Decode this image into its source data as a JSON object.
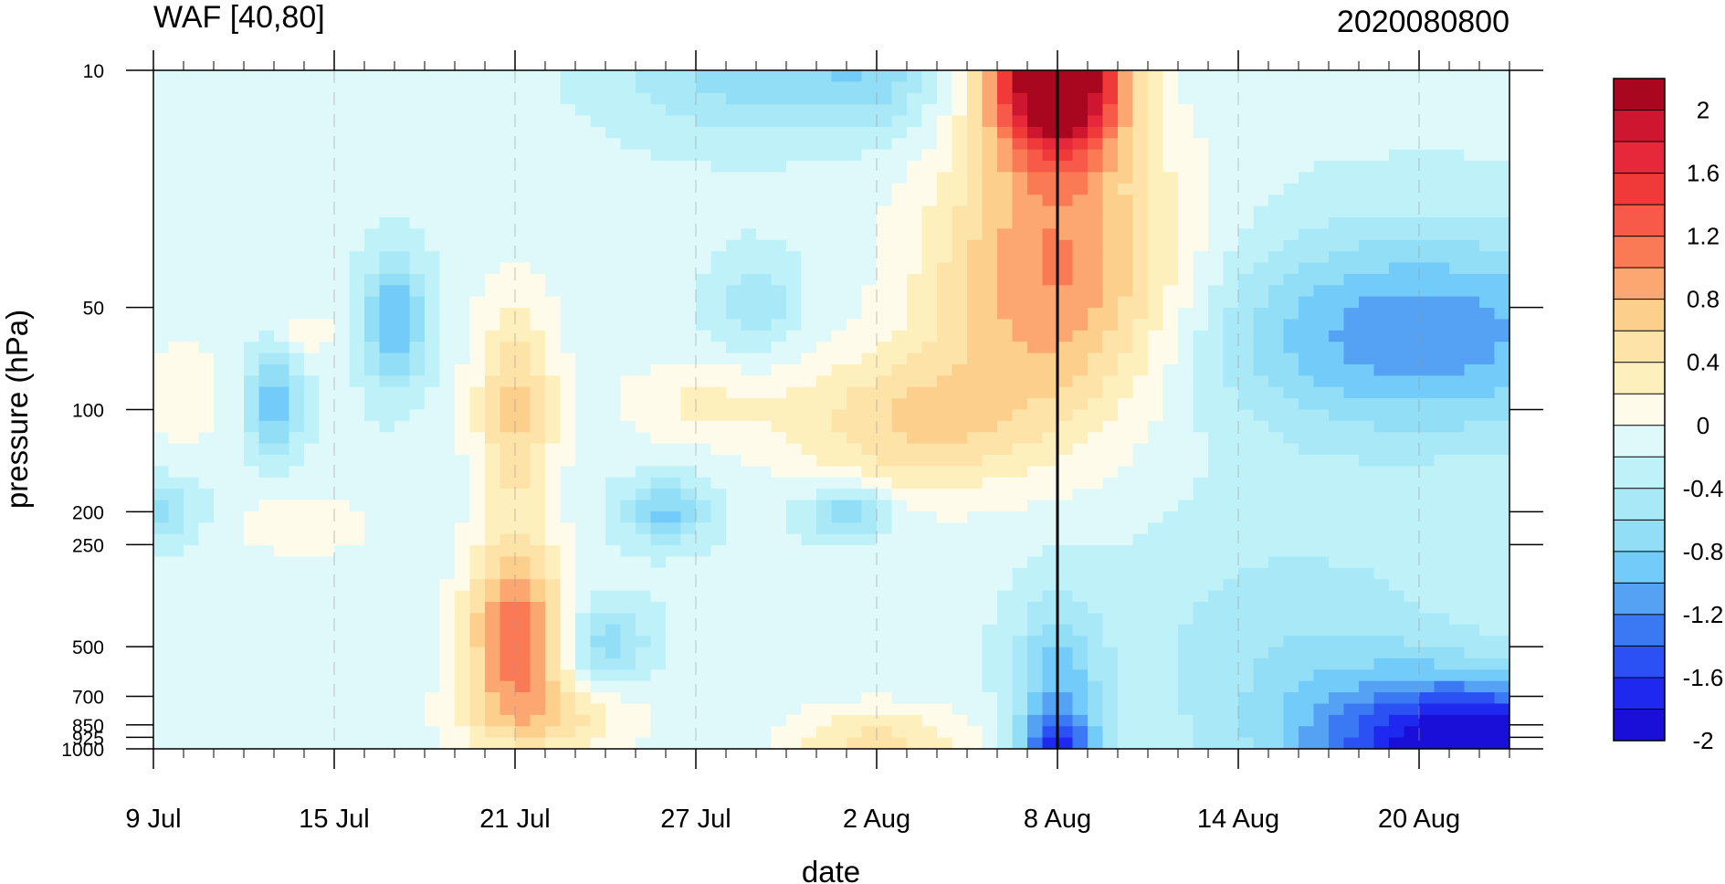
{
  "chart_data": {
    "type": "heatmap",
    "title": "WAF [40,80]",
    "subtitle": "2020080800",
    "xlabel": "date",
    "ylabel": "pressure (hPa)",
    "x_ticks": [
      "9 Jul",
      "15 Jul",
      "21 Jul",
      "27 Jul",
      "2 Aug",
      "8 Aug",
      "14 Aug",
      "20 Aug"
    ],
    "x_range": [
      "2020-07-09",
      "2020-08-23"
    ],
    "y_scale": "log",
    "y_reversed": true,
    "y_range": [
      10,
      1000
    ],
    "y_ticks": [
      10,
      50,
      100,
      200,
      250,
      500,
      700,
      850,
      925,
      1000
    ],
    "y_tick_labels": [
      "10",
      "50",
      "100",
      "200",
      "250",
      "500",
      "700",
      "850",
      "925",
      "1000"
    ],
    "vertical_marker": "2020-08-08",
    "colorbar": {
      "levels": [
        -2.2,
        -2.0,
        -1.8,
        -1.6,
        -1.4,
        -1.2,
        -1.0,
        -0.8,
        -0.6,
        -0.4,
        -0.2,
        0.0,
        0.2,
        0.4,
        0.6,
        0.8,
        1.0,
        1.2,
        1.4,
        1.6,
        1.8,
        2.0,
        2.2
      ],
      "labels": [
        "2",
        "1.6",
        "1.2",
        "0.8",
        "0.4",
        "0",
        "-0.4",
        "-0.8",
        "-1.2",
        "-1.6",
        "-2"
      ],
      "colors": [
        "#1a0fd8",
        "#1f28ee",
        "#2b50f4",
        "#3a78f4",
        "#55a2f4",
        "#72cbf8",
        "#92def6",
        "#a9e8f6",
        "#bff2f8",
        "#dff9fb",
        "#fffbea",
        "#fdf0bc",
        "#fde3a8",
        "#fdcf8c",
        "#fca772",
        "#f97a54",
        "#f85a49",
        "#f03a3a",
        "#e6283a",
        "#ce1631",
        "#a8071f"
      ]
    },
    "features": [
      {
        "date": "2020-08-08",
        "pressure": 10,
        "value": 2.2,
        "desc": "strong positive maximum, upper stratosphere"
      },
      {
        "date": "2020-08-02",
        "pressure": 100,
        "value": 0.7
      },
      {
        "date": "2020-07-21",
        "pressure": 100,
        "value": 0.6
      },
      {
        "date": "2020-07-21",
        "pressure": 500,
        "value": 1.4
      },
      {
        "date": "2020-08-21",
        "pressure": 1000,
        "value": -2.0
      },
      {
        "date": "2020-07-17",
        "pressure": 50,
        "value": -1.2
      }
    ]
  }
}
